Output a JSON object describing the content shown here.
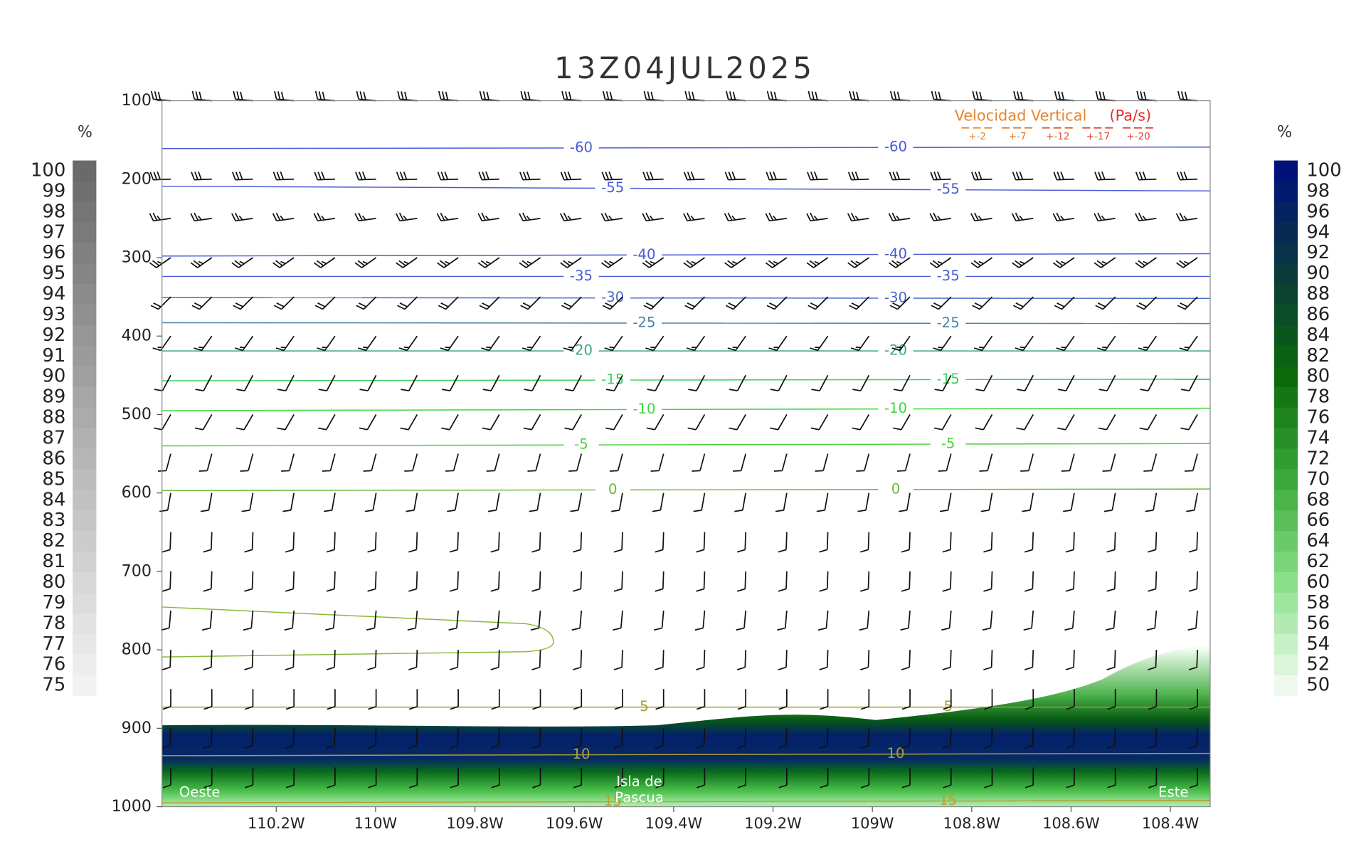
{
  "chart_data": {
    "type": "cross-section",
    "title": "13Z04JUL2025",
    "xlim": [
      -110.43,
      -108.32
    ],
    "xticks": [
      {
        "value": -110.2,
        "label": "110.2W"
      },
      {
        "value": -110,
        "label": "110W"
      },
      {
        "value": -109.8,
        "label": "109.8W"
      },
      {
        "value": -109.6,
        "label": "109.6W"
      },
      {
        "value": -109.4,
        "label": "109.4W"
      },
      {
        "value": -109.2,
        "label": "109.2W"
      },
      {
        "value": -109,
        "label": "109W"
      },
      {
        "value": -108.8,
        "label": "108.8W"
      },
      {
        "value": -108.6,
        "label": "108.6W"
      },
      {
        "value": -108.4,
        "label": "108.4W"
      }
    ],
    "ylim": [
      100,
      1000
    ],
    "y_inverted": true,
    "yticks": [
      100,
      200,
      300,
      400,
      500,
      600,
      700,
      800,
      900,
      1000
    ],
    "contour_x": [
      -110.43,
      -108.32
    ],
    "contours": [
      {
        "value": -60,
        "color": "#4a5ad8",
        "pressure": [
          161,
          159
        ]
      },
      {
        "value": -55,
        "color": "#4a5ad8",
        "pressure": [
          209,
          215
        ]
      },
      {
        "value": -40,
        "color": "#4a5ad8",
        "pressure": [
          298,
          295
        ]
      },
      {
        "value": -35,
        "color": "#4a5ad8",
        "pressure": [
          324,
          324
        ]
      },
      {
        "value": -30,
        "color": "#4a6ac8",
        "pressure": [
          351,
          352
        ]
      },
      {
        "value": -25,
        "color": "#4a80a8",
        "pressure": [
          383,
          384
        ]
      },
      {
        "value": -20,
        "color": "#3aa87a",
        "pressure": [
          419,
          419
        ]
      },
      {
        "value": -15,
        "color": "#3ad05a",
        "pressure": [
          457,
          455
        ]
      },
      {
        "value": -10,
        "color": "#3ad83a",
        "pressure": [
          495,
          492
        ]
      },
      {
        "value": -5,
        "color": "#4ad03a",
        "pressure": [
          540,
          537
        ]
      },
      {
        "value": 0,
        "color": "#6ab83a",
        "pressure": [
          597,
          595
        ]
      },
      {
        "value": 5,
        "color": "#a0a030",
        "pressure": [
          873,
          873
        ]
      },
      {
        "value": 10,
        "color": "#b0a030",
        "pressure": [
          935,
          932
        ]
      },
      {
        "value": 15,
        "color": "#b8a030",
        "pressure": [
          995,
          992
        ]
      }
    ],
    "wind": {
      "levels": [
        {
          "pressure": 100,
          "direction": 275,
          "speed": 30
        },
        {
          "pressure": 200,
          "direction": 268,
          "speed": 30
        },
        {
          "pressure": 250,
          "direction": 262,
          "speed": 25
        },
        {
          "pressure": 300,
          "direction": 235,
          "speed": 25
        },
        {
          "pressure": 350,
          "direction": 225,
          "speed": 20
        },
        {
          "pressure": 400,
          "direction": 215,
          "speed": 15
        },
        {
          "pressure": 450,
          "direction": 208,
          "speed": 10
        },
        {
          "pressure": 500,
          "direction": 210,
          "speed": 10
        },
        {
          "pressure": 550,
          "direction": 195,
          "speed": 10
        },
        {
          "pressure": 600,
          "direction": 190,
          "speed": 10
        },
        {
          "pressure": 650,
          "direction": 182,
          "speed": 10
        },
        {
          "pressure": 700,
          "direction": 182,
          "speed": 10
        },
        {
          "pressure": 750,
          "direction": 185,
          "speed": 10
        },
        {
          "pressure": 800,
          "direction": 182,
          "speed": 10
        },
        {
          "pressure": 850,
          "direction": 180,
          "speed": 10
        },
        {
          "pressure": 900,
          "direction": 182,
          "speed": 10
        },
        {
          "pressure": 950,
          "direction": 180,
          "speed": 10
        }
      ]
    },
    "legend": {
      "title": "Velocidad Vertical",
      "unit": "(Pa/s)",
      "entries": [
        {
          "label": "+-2",
          "color": "#e8862e"
        },
        {
          "label": "+-7",
          "color": "#e07230"
        },
        {
          "label": "+-12",
          "color": "#d85a30"
        },
        {
          "label": "+-17",
          "color": "#d84535"
        },
        {
          "label": "+-20",
          "color": "#e83535"
        }
      ]
    },
    "rh_left": {
      "unit": "%",
      "labels": [
        100,
        99,
        98,
        97,
        96,
        95,
        94,
        93,
        92,
        91,
        90,
        89,
        88,
        87,
        86,
        85,
        84,
        83,
        82,
        81,
        80,
        79,
        78,
        77,
        76,
        75
      ],
      "colors": [
        "#f2f2f2",
        "#6a6a6a"
      ]
    },
    "rh_right": {
      "unit": "%",
      "labels": [
        100,
        98,
        96,
        94,
        92,
        90,
        88,
        86,
        84,
        82,
        80,
        78,
        76,
        74,
        72,
        70,
        68,
        66,
        64,
        62,
        60,
        58,
        56,
        54,
        52,
        50
      ],
      "colors": [
        "#eefaee",
        "#8ae08a",
        "#3aa83a",
        "#0a6a0a",
        "#0a3a3a",
        "#00127a"
      ]
    },
    "annotations": [
      "Oeste",
      "Isla de",
      "Pascua",
      "Este"
    ]
  }
}
